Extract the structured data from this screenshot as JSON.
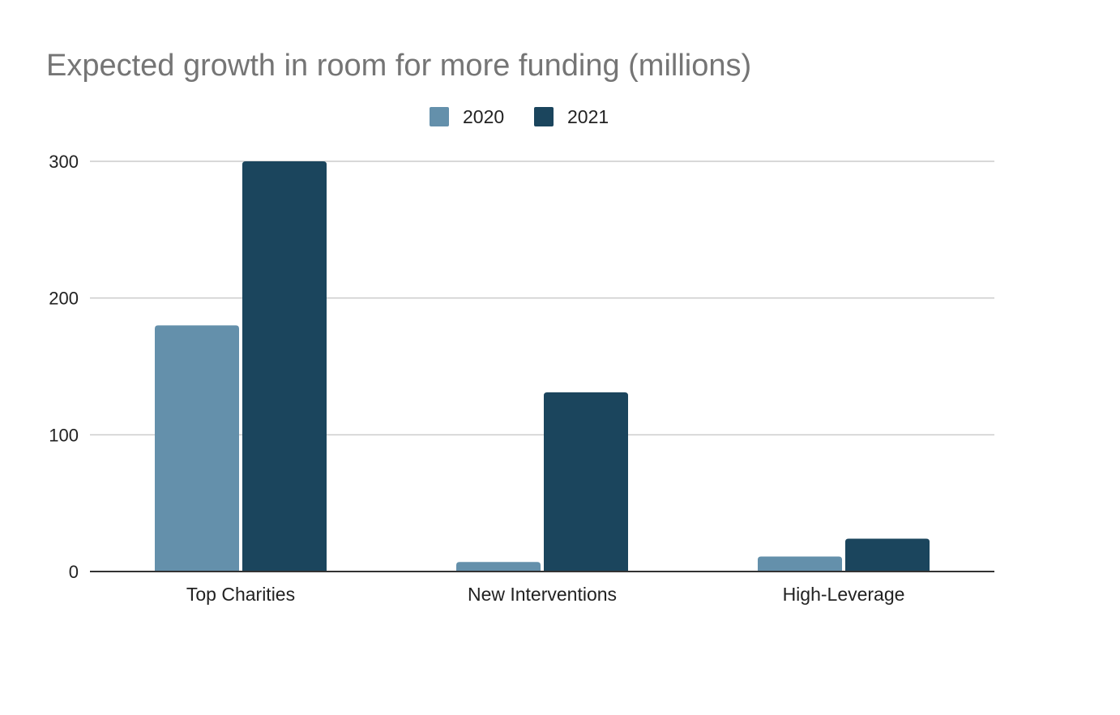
{
  "chart_data": {
    "type": "bar",
    "title": "Expected growth in room for more funding (millions)",
    "xlabel": "",
    "ylabel": "",
    "categories": [
      "Top Charities",
      "New Interventions",
      "High-Leverage"
    ],
    "series": [
      {
        "name": "2020",
        "color": "#6490AB",
        "values": [
          180,
          7,
          11
        ]
      },
      {
        "name": "2021",
        "color": "#1B455D",
        "values": [
          300,
          131,
          24
        ]
      }
    ],
    "ylim": [
      0,
      300
    ],
    "yticks": [
      0,
      100,
      200,
      300
    ],
    "ytick_labels": [
      "0",
      "100",
      "200",
      "300"
    ],
    "grid": true,
    "legend_position": "top-center"
  }
}
